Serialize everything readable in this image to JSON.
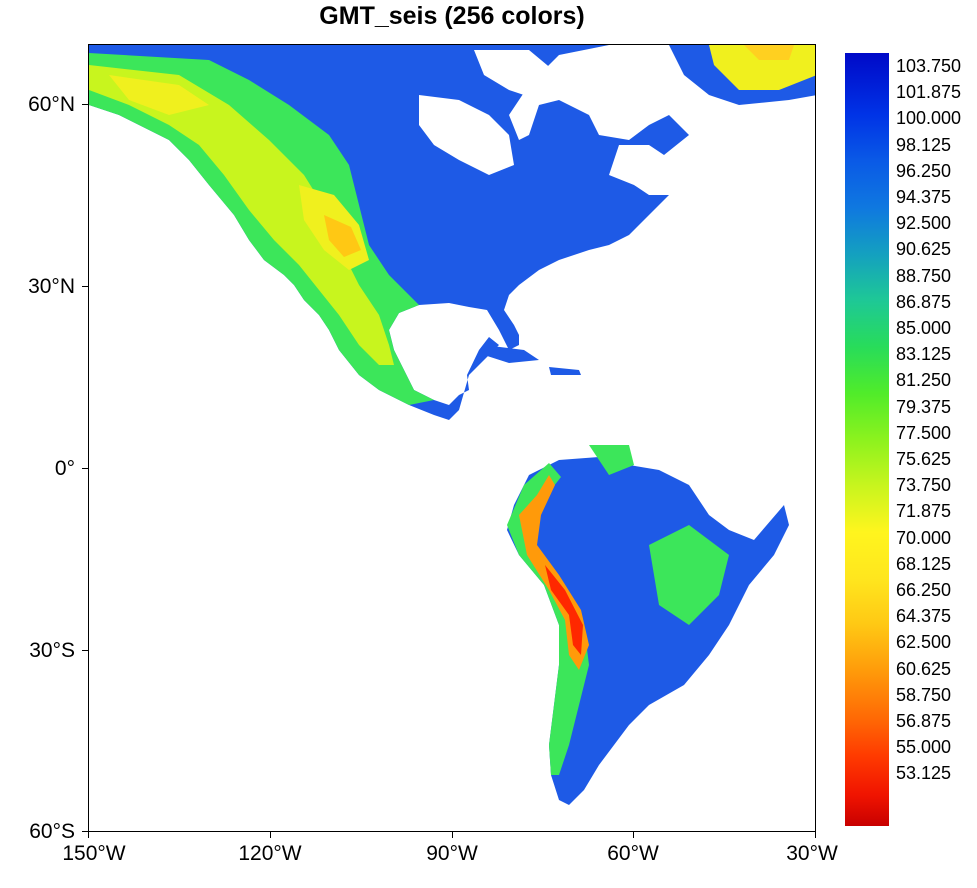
{
  "title": "GMT_seis (256 colors)",
  "axes": {
    "y_labels": [
      "60°N",
      "30°N",
      "0°",
      "30°S",
      "60°S"
    ],
    "x_labels": [
      "150°W",
      "120°W",
      "90°W",
      "60°W",
      "30°W"
    ]
  },
  "colorbar": {
    "labels": [
      "103.750",
      "101.875",
      "100.000",
      "98.125",
      "96.250",
      "94.375",
      "92.500",
      "90.625",
      "88.750",
      "86.875",
      "85.000",
      "83.125",
      "81.250",
      "79.375",
      "77.500",
      "75.625",
      "73.750",
      "71.875",
      "70.000",
      "68.125",
      "66.250",
      "64.375",
      "62.500",
      "60.625",
      "58.750",
      "56.875",
      "55.000",
      "53.125"
    ],
    "top_color": "#0009c8",
    "bottom_color": "#c80000"
  },
  "map_colors": {
    "ocean": "#ffffff",
    "lowland": "#1e5ae6",
    "plains": "#2aa0c8",
    "green": "#3ce65a",
    "yellow": "#f0f01e",
    "orange": "#ff9a0a",
    "red": "#ff2800",
    "ice": "#ffffff"
  }
}
